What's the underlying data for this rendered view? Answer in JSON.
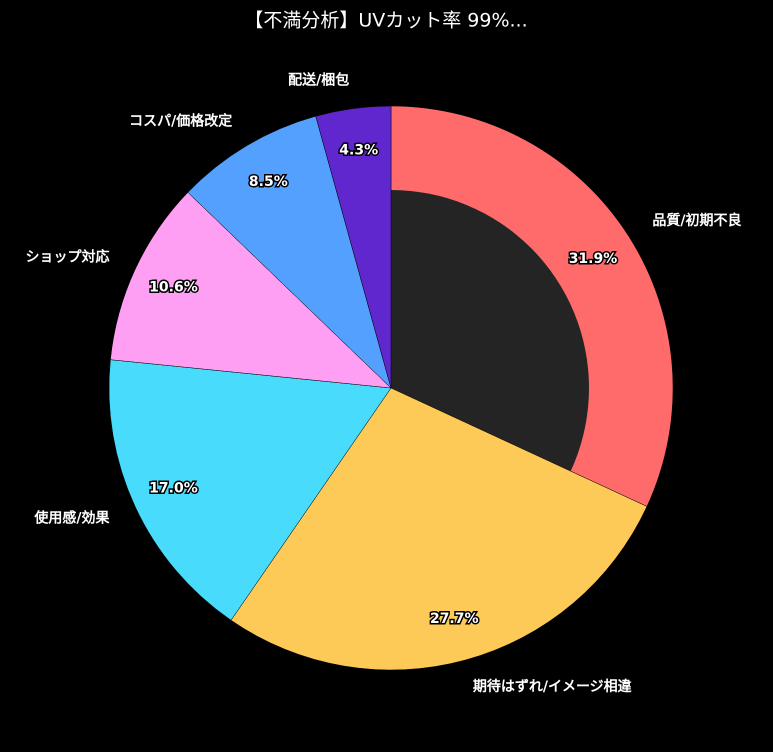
{
  "chart_data": {
    "type": "donut",
    "title": "【不満分析】UVカット率 99%...",
    "categories": [
      "品質/初期不良",
      "期待はずれ/イメージ相違",
      "使用感/効果",
      "ショップ対応",
      "コスパ/価格改定",
      "配送/梱包"
    ],
    "values": [
      31.9,
      27.7,
      17.0,
      10.6,
      8.5,
      4.3
    ],
    "value_labels": [
      "31.9%",
      "27.7%",
      "17.0%",
      "10.6%",
      "8.5%",
      "4.3%"
    ],
    "colors": [
      "#ff6b6b",
      "#feca57",
      "#48dbfb",
      "#ff9ff3",
      "#54a0ff",
      "#5f27cd"
    ]
  }
}
